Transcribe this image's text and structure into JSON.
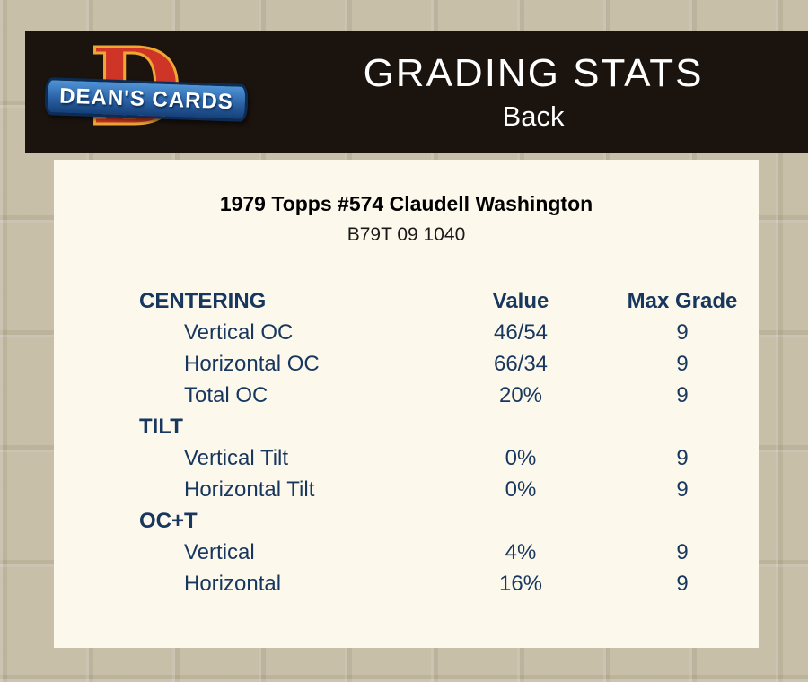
{
  "header": {
    "title": "GRADING STATS",
    "subtitle": "Back",
    "logo": {
      "letter": "D",
      "text": "DEAN'S CARDS"
    }
  },
  "card": {
    "title": "1979 Topps #574 Claudell Washington",
    "code": "B79T 09 1040"
  },
  "table": {
    "rows": [
      {
        "type": "header",
        "label": "CENTERING",
        "value": "Value",
        "grade": "Max Grade"
      },
      {
        "type": "data",
        "label": "Vertical OC",
        "value": "46/54",
        "grade": "9"
      },
      {
        "type": "data",
        "label": "Horizontal OC",
        "value": "66/34",
        "grade": "9"
      },
      {
        "type": "data",
        "label": "Total OC",
        "value": "20%",
        "grade": "9"
      },
      {
        "type": "section",
        "label": "TILT",
        "value": "",
        "grade": ""
      },
      {
        "type": "data",
        "label": "Vertical Tilt",
        "value": "0%",
        "grade": "9"
      },
      {
        "type": "data",
        "label": "Horizontal Tilt",
        "value": "0%",
        "grade": "9"
      },
      {
        "type": "section",
        "label": "OC+T",
        "value": "",
        "grade": ""
      },
      {
        "type": "data",
        "label": "Vertical",
        "value": "4%",
        "grade": "9"
      },
      {
        "type": "data",
        "label": "Horizontal",
        "value": "16%",
        "grade": "9"
      }
    ]
  },
  "colors": {
    "table_text": "#17375e",
    "header_bg": "#1b130e",
    "page_bg": "#c8bfa8",
    "panel_bg": "#fdf8ec",
    "logo_red": "#cf3527",
    "logo_gold": "#efa733",
    "banner_blue": "#2a62a5"
  }
}
